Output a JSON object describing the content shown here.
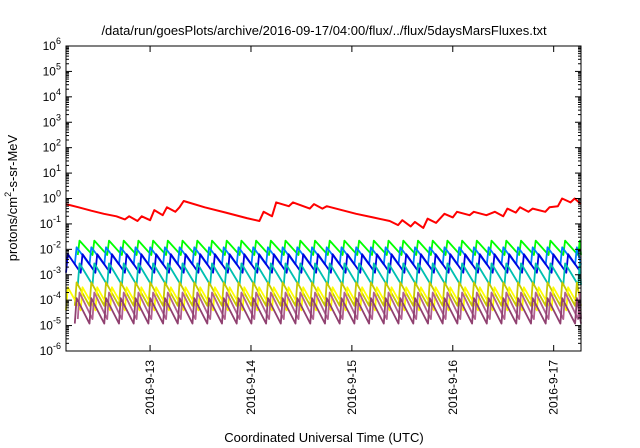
{
  "chart_data": {
    "type": "line",
    "title": "/data/run/goesPlots/archive/2016-09-17/04:00/flux/../flux/5daysMarsFluxes.txt",
    "xlabel": "Coordinated Universal Time (UTC)",
    "ylabel_parts": {
      "pre": "protons/cm",
      "sup": "2",
      "post": "-s-sr-MeV"
    },
    "yscale": "log",
    "ylim": [
      1e-06,
      1000000.0
    ],
    "xlim": [
      "2016-09-12T04:00",
      "2016-09-17T06:30"
    ],
    "y_ticks": [
      {
        "value": 1e-06,
        "base": "10",
        "exp": "-6"
      },
      {
        "value": 1e-05,
        "base": "10",
        "exp": "-5"
      },
      {
        "value": 0.0001,
        "base": "10",
        "exp": "-4"
      },
      {
        "value": 0.001,
        "base": "10",
        "exp": "-3"
      },
      {
        "value": 0.01,
        "base": "10",
        "exp": "-2"
      },
      {
        "value": 0.1,
        "base": "10",
        "exp": "-1"
      },
      {
        "value": 1,
        "base": "10",
        "exp": "0"
      },
      {
        "value": 10,
        "base": "10",
        "exp": "1"
      },
      {
        "value": 100,
        "base": "10",
        "exp": "2"
      },
      {
        "value": 1000,
        "base": "10",
        "exp": "3"
      },
      {
        "value": 10000,
        "base": "10",
        "exp": "4"
      },
      {
        "value": 100000,
        "base": "10",
        "exp": "5"
      },
      {
        "value": 1000000,
        "base": "10",
        "exp": "6"
      }
    ],
    "x_ticks": [
      {
        "value": "2016-09-13T00:00",
        "label": "2016-9-13"
      },
      {
        "value": "2016-09-14T00:00",
        "label": "2016-9-14"
      },
      {
        "value": "2016-09-15T00:00",
        "label": "2016-9-15"
      },
      {
        "value": "2016-09-16T00:00",
        "label": "2016-9-16"
      },
      {
        "value": "2016-09-17T00:00",
        "label": "2016-9-17"
      }
    ],
    "grid": false,
    "legend": "none",
    "series": [
      {
        "color": "#ff0000",
        "points": [
          [
            "2016-09-12T04:00",
            0.6
          ],
          [
            "2016-09-12T07:00",
            0.45
          ],
          [
            "2016-09-12T10:00",
            0.33
          ],
          [
            "2016-09-12T13:00",
            0.25
          ],
          [
            "2016-09-12T16:00",
            0.2
          ],
          [
            "2016-09-12T18:00",
            0.15
          ],
          [
            "2016-09-12T19:00",
            0.2
          ],
          [
            "2016-09-12T21:00",
            0.13
          ],
          [
            "2016-09-12T22:00",
            0.2
          ],
          [
            "2016-09-13T00:00",
            0.14
          ],
          [
            "2016-09-13T01:00",
            0.35
          ],
          [
            "2016-09-13T03:00",
            0.22
          ],
          [
            "2016-09-13T04:00",
            0.45
          ],
          [
            "2016-09-13T06:00",
            0.3
          ],
          [
            "2016-09-13T07:00",
            0.45
          ],
          [
            "2016-09-13T08:00",
            0.8
          ],
          [
            "2016-09-13T13:00",
            0.45
          ],
          [
            "2016-09-13T18:00",
            0.28
          ],
          [
            "2016-09-13T23:00",
            0.17
          ],
          [
            "2016-09-14T02:00",
            0.13
          ],
          [
            "2016-09-14T03:00",
            0.3
          ],
          [
            "2016-09-14T05:00",
            0.2
          ],
          [
            "2016-09-14T06:00",
            0.7
          ],
          [
            "2016-09-14T09:00",
            0.5
          ],
          [
            "2016-09-14T10:00",
            0.7
          ],
          [
            "2016-09-14T14:00",
            0.4
          ],
          [
            "2016-09-14T15:00",
            0.6
          ],
          [
            "2016-09-14T17:00",
            0.4
          ],
          [
            "2016-09-14T18:00",
            0.5
          ],
          [
            "2016-09-15T01:00",
            0.25
          ],
          [
            "2016-09-15T05:00",
            0.18
          ],
          [
            "2016-09-15T09:00",
            0.13
          ],
          [
            "2016-09-15T11:00",
            0.09
          ],
          [
            "2016-09-15T12:00",
            0.14
          ],
          [
            "2016-09-15T14:00",
            0.08
          ],
          [
            "2016-09-15T15:00",
            0.12
          ],
          [
            "2016-09-15T17:00",
            0.07
          ],
          [
            "2016-09-15T18:00",
            0.16
          ],
          [
            "2016-09-15T20:00",
            0.11
          ],
          [
            "2016-09-15T22:00",
            0.25
          ],
          [
            "2016-09-16T00:00",
            0.18
          ],
          [
            "2016-09-16T01:00",
            0.3
          ],
          [
            "2016-09-16T04:00",
            0.22
          ],
          [
            "2016-09-16T05:00",
            0.3
          ],
          [
            "2016-09-16T08:00",
            0.22
          ],
          [
            "2016-09-16T10:00",
            0.3
          ],
          [
            "2016-09-16T12:00",
            0.2
          ],
          [
            "2016-09-16T13:00",
            0.4
          ],
          [
            "2016-09-16T15:00",
            0.28
          ],
          [
            "2016-09-16T16:00",
            0.45
          ],
          [
            "2016-09-16T18:00",
            0.3
          ],
          [
            "2016-09-16T19:00",
            0.4
          ],
          [
            "2016-09-16T22:00",
            0.3
          ],
          [
            "2016-09-16T23:00",
            0.45
          ],
          [
            "2016-09-17T01:00",
            0.5
          ],
          [
            "2016-09-17T02:00",
            1.0
          ],
          [
            "2016-09-17T04:00",
            0.7
          ],
          [
            "2016-09-17T05:00",
            1.0
          ],
          [
            "2016-09-17T06:30",
            0.6
          ]
        ]
      },
      {
        "color": "#00ff00",
        "sawtooth": {
          "period_hours": 3.5,
          "high": 0.022,
          "low": 0.006
        }
      },
      {
        "color": "#0080ff",
        "sawtooth": {
          "period_hours": 3.5,
          "high": 0.012,
          "low": 0.0025
        }
      },
      {
        "color": "#0000e0",
        "sawtooth": {
          "period_hours": 3.5,
          "high": 0.0065,
          "low": 0.0012
        }
      },
      {
        "color": "#00c0b0",
        "sawtooth": {
          "period_hours": 3.5,
          "high": 0.0028,
          "low": 0.0004
        }
      },
      {
        "color": "#c8c800",
        "sawtooth": {
          "period_hours": 3.5,
          "high": 0.0005,
          "low": 6e-05
        }
      },
      {
        "color": "#ffff00",
        "sawtooth": {
          "period_hours": 3.5,
          "high": 0.00032,
          "low": 4e-05
        }
      },
      {
        "color": "#b06090",
        "sawtooth": {
          "period_hours": 3.5,
          "high": 0.0002,
          "low": 1.8e-05
        }
      },
      {
        "color": "#904070",
        "sawtooth": {
          "period_hours": 3.5,
          "high": 0.00012,
          "low": 1.2e-05
        }
      }
    ]
  }
}
